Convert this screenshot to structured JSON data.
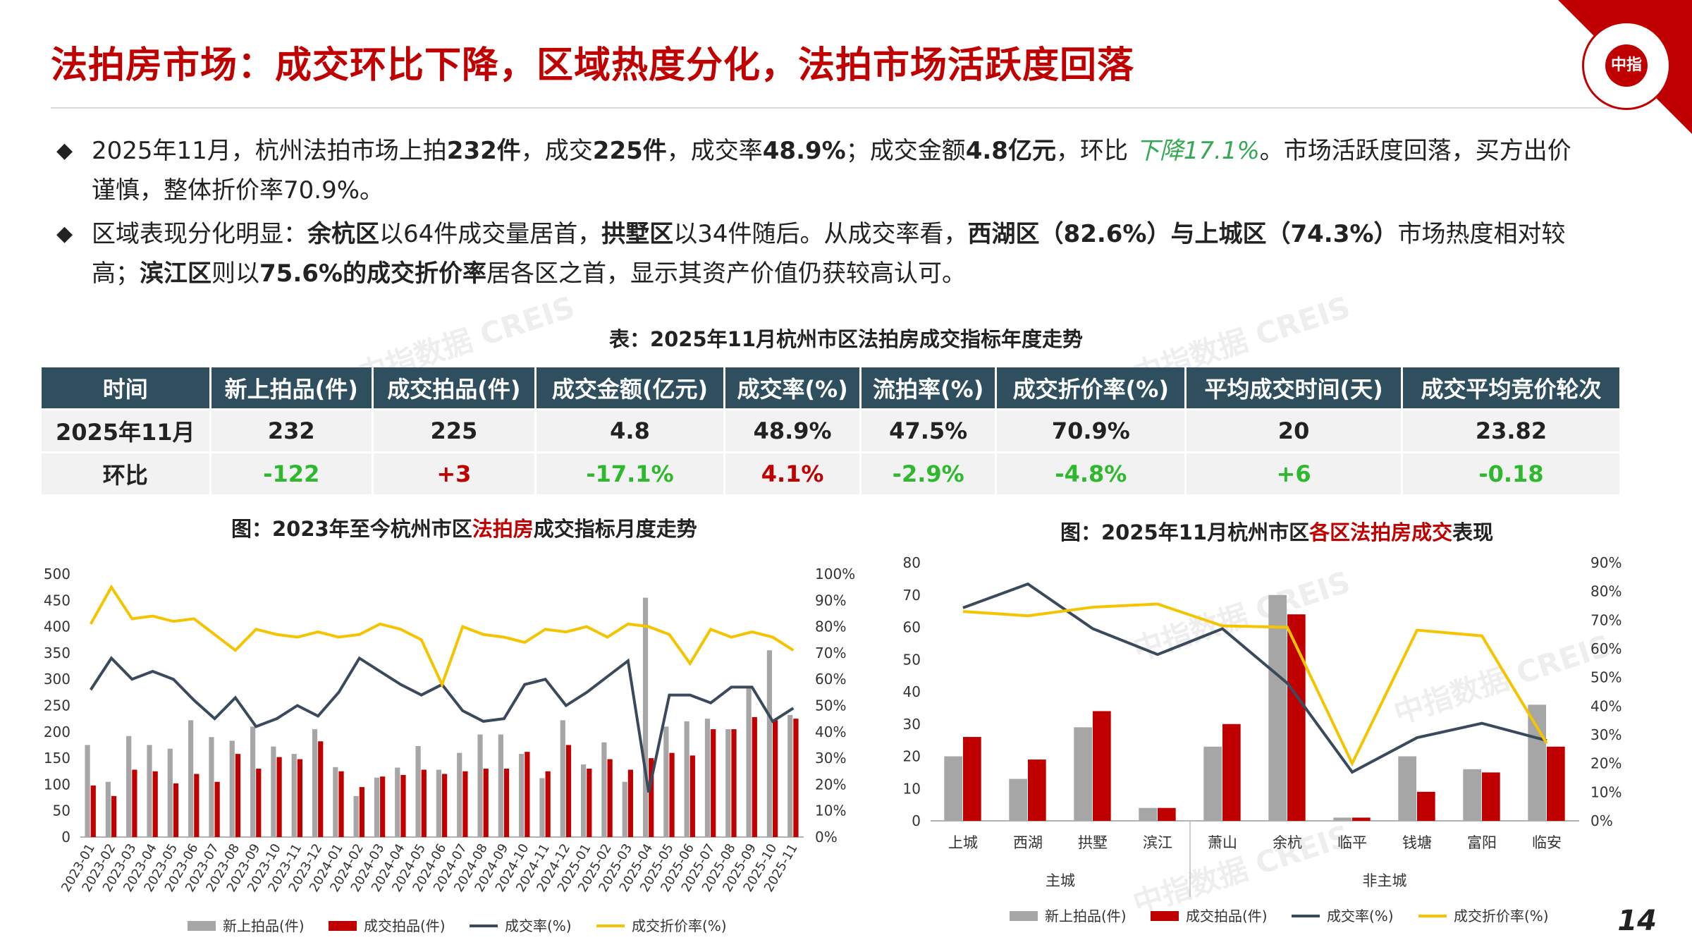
{
  "title": "法拍房市场：成交环比下降，区域热度分化，法拍市场活跃度回落",
  "seal_text": "中指",
  "bullets": {
    "b1": {
      "p1": "2025年11月，杭州法拍市场上拍",
      "v1": "232件",
      "p2": "，成交",
      "v2": "225件",
      "p3": "，成交率",
      "v3": "48.9%",
      "p4": "；成交金额",
      "v4": "4.8亿元",
      "p5": "，环比",
      "v5": "下降17.1%",
      "p6": "。市场活跃度回落，买方出价谨慎，整体折价率70.9%。"
    },
    "b2": {
      "p1": "区域表现分化明显：",
      "v1": "余杭区",
      "p2": "以64件成交量居首，",
      "v2": "拱墅区",
      "p3": "以34件随后。从成交率看，",
      "v3": "西湖区（82.6%）与上城区（74.3%）",
      "p4": "市场热度相对较高；",
      "v4": "滨江区",
      "p5": "则以",
      "v5": "75.6%的成交折价率",
      "p6": "居各区之首，显示其资产价值仍获较高认可。"
    }
  },
  "table": {
    "title": "表：2025年11月杭州市区法拍房成交指标年度走势",
    "headers": [
      "时间",
      "新上拍品(件)",
      "成交拍品(件)",
      "成交金额(亿元)",
      "成交率(%)",
      "流拍率(%)",
      "成交折价率(%)",
      "平均成交时间(天)",
      "成交平均竞价轮次"
    ],
    "row1": [
      "2025年11月",
      "232",
      "225",
      "4.8",
      "48.9%",
      "47.5%",
      "70.9%",
      "20",
      "23.82"
    ],
    "row2": [
      "环比",
      "-122",
      "+3",
      "-17.1%",
      "4.1%",
      "-2.9%",
      "-4.8%",
      "+6",
      "-0.18"
    ]
  },
  "chart1_title": {
    "p1": "图：2023年至今杭州市区",
    "p2": "法拍房",
    "p3": "成交指标月度走势"
  },
  "chart2_title": {
    "p1": "图：2025年11月杭州市区",
    "p2": "各区法拍房成交",
    "p3": "表现"
  },
  "chart_data": [
    {
      "type": "bar",
      "categories": [
        "2023-01",
        "2023-02",
        "2023-03",
        "2023-04",
        "2023-05",
        "2023-06",
        "2023-07",
        "2023-08",
        "2023-09",
        "2023-10",
        "2023-11",
        "2023-12",
        "2024-01",
        "2024-02",
        "2024-03",
        "2024-04",
        "2024-05",
        "2024-06",
        "2024-07",
        "2024-08",
        "2024-09",
        "2024-10",
        "2024-11",
        "2024-12",
        "2025-01",
        "2025-02",
        "2025-03",
        "2025-04",
        "2025-05",
        "2025-06",
        "2025-07",
        "2025-08",
        "2025-09",
        "2025-10",
        "2025-11"
      ],
      "y_left_ticks": [
        "0",
        "50",
        "100",
        "150",
        "200",
        "250",
        "300",
        "350",
        "400",
        "450",
        "500"
      ],
      "y_right_ticks": [
        "0%",
        "10%",
        "20%",
        "30%",
        "40%",
        "50%",
        "60%",
        "70%",
        "80%",
        "90%",
        "100%"
      ],
      "ylim": [
        0,
        500
      ],
      "y2lim": [
        0,
        100
      ],
      "series": [
        {
          "name": "新上拍品(件)",
          "kind": "bar",
          "axis": "left",
          "color": "#a6a6a6",
          "values": [
            175,
            105,
            192,
            175,
            168,
            222,
            190,
            183,
            210,
            172,
            158,
            205,
            133,
            78,
            113,
            132,
            173,
            128,
            160,
            195,
            195,
            158,
            112,
            222,
            138,
            180,
            105,
            455,
            210,
            220,
            225,
            205,
            283,
            355,
            232
          ]
        },
        {
          "name": "成交拍品(件)",
          "kind": "bar",
          "axis": "left",
          "color": "#c00000",
          "values": [
            98,
            78,
            128,
            125,
            102,
            120,
            105,
            158,
            130,
            152,
            148,
            182,
            125,
            95,
            115,
            118,
            128,
            120,
            125,
            130,
            130,
            162,
            125,
            175,
            130,
            148,
            128,
            150,
            160,
            155,
            205,
            205,
            228,
            222,
            225
          ]
        },
        {
          "name": "成交率(%)",
          "kind": "line",
          "axis": "right",
          "color": "#3a4a5c",
          "values": [
            56,
            68,
            60,
            63,
            60,
            52,
            45,
            53,
            42,
            45,
            50,
            46,
            55,
            68,
            63,
            58,
            54,
            58,
            48,
            44,
            45,
            58,
            60,
            50,
            55,
            61,
            67,
            17,
            54,
            54,
            51,
            57,
            57,
            44,
            49
          ]
        },
        {
          "name": "成交折价率(%)",
          "kind": "line",
          "axis": "right",
          "color": "#f5c400",
          "values": [
            81,
            95,
            83,
            84,
            82,
            83,
            77,
            71,
            79,
            77,
            76,
            78,
            76,
            77,
            81,
            79,
            75,
            58,
            80,
            77,
            76,
            74,
            79,
            78,
            80,
            76,
            81,
            80,
            77,
            66,
            79,
            76,
            78,
            76,
            71
          ]
        }
      ]
    },
    {
      "type": "bar",
      "categories": [
        "上城",
        "西湖",
        "拱墅",
        "滨江",
        "萧山",
        "余杭",
        "临平",
        "钱塘",
        "富阳",
        "临安"
      ],
      "groups": [
        {
          "name": "主城",
          "count": 4
        },
        {
          "name": "非主城",
          "count": 6
        }
      ],
      "y_left_ticks": [
        "0",
        "10",
        "20",
        "30",
        "40",
        "50",
        "60",
        "70",
        "80"
      ],
      "y_right_ticks": [
        "0%",
        "10%",
        "20%",
        "30%",
        "40%",
        "50%",
        "60%",
        "70%",
        "80%",
        "90%"
      ],
      "ylim": [
        0,
        80
      ],
      "y2lim": [
        0,
        90
      ],
      "series": [
        {
          "name": "新上拍品(件)",
          "kind": "bar",
          "axis": "left",
          "color": "#a6a6a6",
          "values": [
            20,
            13,
            29,
            4,
            23,
            70,
            1,
            20,
            16,
            36
          ]
        },
        {
          "name": "成交拍品(件)",
          "kind": "bar",
          "axis": "left",
          "color": "#c00000",
          "values": [
            26,
            19,
            34,
            4,
            30,
            64,
            1,
            9,
            15,
            23
          ]
        },
        {
          "name": "成交率(%)",
          "kind": "line",
          "axis": "right",
          "color": "#3a4a5c",
          "values": [
            74.3,
            82.6,
            67,
            58,
            67,
            48,
            17,
            29,
            34,
            28
          ]
        },
        {
          "name": "成交折价率(%)",
          "kind": "line",
          "axis": "right",
          "color": "#f5c400",
          "values": [
            73,
            71.5,
            74.5,
            75.6,
            68,
            67.5,
            20,
            66.5,
            64.5,
            27
          ]
        }
      ]
    }
  ],
  "watermark": "中指数据 CREIS",
  "page_number": "14"
}
